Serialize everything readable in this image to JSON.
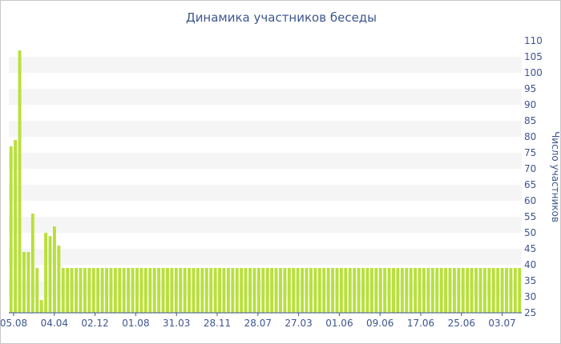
{
  "chart_data": {
    "type": "bar",
    "title": "Динамика участников беседы",
    "xlabel": "",
    "ylabel": "Число участников",
    "ylim": [
      25,
      110
    ],
    "y_ticks": [
      25,
      30,
      35,
      40,
      45,
      50,
      55,
      60,
      65,
      70,
      75,
      80,
      85,
      90,
      95,
      100,
      105,
      110
    ],
    "y_axis_position": "right",
    "grid": "alternating horizontal bands",
    "bar_color": "#b8e03a",
    "x_tick_labels": [
      "05.08",
      "04.04",
      "02.12",
      "01.08",
      "31.03",
      "28.11",
      "28.07",
      "27.03",
      "01.06",
      "09.06",
      "17.06",
      "25.06",
      "03.07"
    ],
    "values": [
      77,
      79,
      107,
      44,
      44,
      56,
      39,
      29,
      50,
      49,
      52,
      46,
      39,
      39,
      39,
      39,
      39,
      39,
      39,
      39,
      39,
      39,
      39,
      39,
      39,
      39,
      39,
      39,
      39,
      39,
      39,
      39,
      39,
      39,
      39,
      39,
      39,
      39,
      39,
      39,
      39,
      39,
      39,
      39,
      39,
      39,
      39,
      39,
      39,
      39,
      39,
      39,
      39,
      39,
      39,
      39,
      39,
      39,
      39,
      39,
      39,
      39,
      39,
      39,
      39,
      39,
      39,
      39,
      39,
      39,
      39,
      39,
      39,
      39,
      39,
      39,
      39,
      39,
      39,
      39,
      39,
      39,
      39,
      39,
      39,
      39,
      39,
      39,
      39,
      39,
      39,
      39,
      39,
      39,
      39,
      39,
      39,
      39,
      39,
      39,
      39,
      39,
      39,
      39,
      39,
      39,
      39,
      39,
      39,
      39,
      39,
      39,
      39,
      39,
      39,
      39,
      39,
      39
    ]
  }
}
